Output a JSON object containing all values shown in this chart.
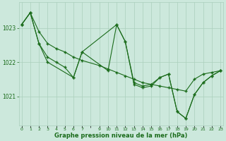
{
  "xlabel": "Graphe pression niveau de la mer (hPa)",
  "background_color": "#cce8dc",
  "line_color": "#1a6b1a",
  "grid_color": "#aacfbc",
  "text_color": "#1a6b1a",
  "series1_x": [
    0,
    1,
    2,
    3,
    4,
    5,
    6,
    7,
    9,
    10,
    11,
    12,
    13,
    14,
    15,
    16,
    17,
    18,
    19,
    20,
    21,
    22,
    23
  ],
  "series1_y": [
    1023.1,
    1023.45,
    1022.9,
    1022.55,
    1022.4,
    1022.3,
    1022.15,
    1022.05,
    1021.9,
    1021.8,
    1021.7,
    1021.6,
    1021.5,
    1021.4,
    1021.35,
    1021.3,
    1021.25,
    1021.2,
    1021.15,
    1021.5,
    1021.65,
    1021.7,
    1021.75
  ],
  "series2_x": [
    0,
    1,
    2,
    3,
    6,
    7,
    11,
    12,
    13,
    14,
    15,
    16,
    17,
    18,
    19,
    20,
    21,
    22,
    23
  ],
  "series2_y": [
    1023.1,
    1023.45,
    1022.55,
    1022.0,
    1021.55,
    1022.3,
    1023.1,
    1022.6,
    1021.4,
    1021.3,
    1021.35,
    1021.55,
    1021.65,
    1020.55,
    1020.35,
    1021.05,
    1021.4,
    1021.6,
    1021.75
  ],
  "series3_x": [
    0,
    1,
    2,
    3,
    4,
    5,
    6,
    7,
    10,
    11,
    12,
    13,
    14,
    15,
    16,
    17,
    18,
    19,
    20,
    21,
    22,
    23
  ],
  "series3_y": [
    1023.1,
    1023.45,
    1022.55,
    1022.15,
    1022.0,
    1021.85,
    1021.55,
    1022.3,
    1021.75,
    1023.1,
    1022.6,
    1021.35,
    1021.25,
    1021.3,
    1021.55,
    1021.65,
    1020.55,
    1020.35,
    1021.05,
    1021.4,
    1021.6,
    1021.75
  ],
  "yticks": [
    1021,
    1022,
    1023
  ],
  "ylim": [
    1020.15,
    1023.75
  ],
  "xlim": [
    -0.3,
    23.3
  ],
  "xtick_labels": [
    "0",
    "1",
    "2",
    "3",
    "4",
    "5",
    "6",
    "7",
    "",
    "9",
    "10",
    "11",
    "12",
    "13",
    "14",
    "15",
    "16",
    "17",
    "18",
    "19",
    "20",
    "21",
    "22",
    "23"
  ]
}
